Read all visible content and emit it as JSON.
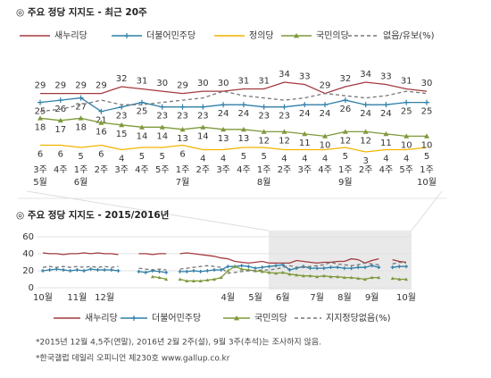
{
  "chart_data": [
    {
      "type": "line",
      "title": "◎  주요 정당 지지도 - 최근 20주",
      "categories": [
        "3주",
        "4주",
        "1주",
        "2주",
        "3주",
        "4주",
        "5주",
        "1주",
        "2주",
        "3주",
        "4주",
        "1주",
        "2주",
        "3주",
        "4주",
        "1주",
        "2주",
        "4주",
        "5주",
        "1주"
      ],
      "months": [
        "5월",
        null,
        "6월",
        null,
        null,
        null,
        null,
        "7월",
        null,
        null,
        null,
        "8월",
        null,
        null,
        null,
        "9월",
        null,
        null,
        null,
        "10월"
      ],
      "series": [
        {
          "name": "새누리당",
          "color": "#a33a3f",
          "marker": null,
          "dash": false,
          "labels": true,
          "label_pos": "above",
          "values": [
            29,
            29,
            29,
            29,
            32,
            31,
            30,
            29,
            30,
            30,
            31,
            31,
            34,
            33,
            29,
            32,
            34,
            33,
            31,
            30
          ]
        },
        {
          "name": "더불어민주당",
          "color": "#2f7fa8",
          "marker": "plus",
          "dash": false,
          "labels": true,
          "label_pos": "below",
          "values": [
            25,
            26,
            27,
            21,
            23,
            25,
            23,
            23,
            23,
            24,
            24,
            23,
            23,
            24,
            24,
            26,
            24,
            24,
            25,
            25
          ]
        },
        {
          "name": "정의당",
          "color": "#f2b400",
          "marker": null,
          "dash": false,
          "labels": true,
          "label_pos": "below",
          "values": [
            6,
            6,
            5,
            6,
            4,
            5,
            5,
            6,
            4,
            4,
            5,
            5,
            4,
            4,
            4,
            5,
            3,
            4,
            4,
            5
          ]
        },
        {
          "name": "국민의당",
          "color": "#7f9a3c",
          "marker": "triangle",
          "dash": false,
          "labels": true,
          "label_pos": "below",
          "values": [
            18,
            17,
            18,
            16,
            15,
            14,
            14,
            13,
            14,
            13,
            13,
            12,
            12,
            11,
            10,
            12,
            12,
            11,
            10,
            10
          ]
        },
        {
          "name": "없음/유보(%)",
          "color": "#777777",
          "marker": null,
          "dash": true,
          "labels": false,
          "label_pos": "above",
          "values": [
            21,
            22,
            24,
            26,
            24,
            24,
            25,
            26,
            27,
            30,
            28,
            27,
            26,
            27,
            29,
            28,
            27,
            28,
            30,
            29
          ]
        }
      ]
    },
    {
      "type": "line",
      "title": "◎  주요 정당 지지도 - 2015/2016년",
      "categories": [
        "10월",
        null,
        null,
        null,
        null,
        "11월",
        null,
        null,
        null,
        "12월",
        null,
        null,
        null,
        null,
        null,
        null,
        null,
        null,
        null,
        null,
        null,
        null,
        null,
        null,
        null,
        null,
        null,
        "4월",
        null,
        null,
        null,
        "5월",
        null,
        null,
        null,
        "6월",
        null,
        null,
        null,
        null,
        "7월",
        null,
        null,
        null,
        "8월",
        null,
        null,
        null,
        "9월",
        null,
        null,
        null,
        null,
        "10월"
      ],
      "ylim": [
        0,
        62
      ],
      "yticks": [
        0,
        20,
        40,
        60
      ],
      "grid": true,
      "series": [
        {
          "name": "새누리당",
          "color": "#a33a3f",
          "marker": null,
          "dash": false,
          "values": [
            41,
            40,
            40,
            39,
            40,
            40,
            41,
            40,
            41,
            40,
            40,
            39,
            null,
            null,
            40,
            40,
            39,
            40,
            40,
            null,
            40,
            41,
            40,
            39,
            38,
            37,
            35,
            34,
            31,
            30,
            29,
            30,
            31,
            29,
            29,
            29,
            29,
            32,
            31,
            30,
            29,
            30,
            30,
            31,
            31,
            34,
            33,
            29,
            32,
            34,
            null,
            33,
            31,
            30
          ]
        },
        {
          "name": "더불어민주당",
          "color": "#2f7fa8",
          "marker": "plus",
          "dash": false,
          "values": [
            20,
            21,
            22,
            21,
            20,
            21,
            20,
            22,
            21,
            21,
            21,
            20,
            null,
            null,
            19,
            18,
            20,
            19,
            18,
            null,
            19,
            19,
            20,
            19,
            20,
            21,
            21,
            25,
            25,
            26,
            25,
            23,
            24,
            25,
            26,
            27,
            21,
            23,
            25,
            23,
            23,
            23,
            24,
            24,
            23,
            23,
            24,
            24,
            26,
            24,
            null,
            24,
            25,
            25
          ]
        },
        {
          "name": "국민의당",
          "color": "#7f9a3c",
          "marker": "triangle",
          "dash": false,
          "values": [
            null,
            null,
            null,
            null,
            null,
            null,
            null,
            null,
            null,
            null,
            null,
            null,
            null,
            null,
            null,
            null,
            13,
            12,
            10,
            null,
            10,
            8,
            8,
            8,
            9,
            10,
            12,
            20,
            25,
            22,
            21,
            20,
            19,
            18,
            17,
            18,
            16,
            15,
            14,
            14,
            13,
            14,
            13,
            13,
            12,
            12,
            11,
            10,
            12,
            12,
            null,
            11,
            10,
            10
          ]
        },
        {
          "name": "지지정당없음(%)",
          "color": "#777777",
          "marker": null,
          "dash": true,
          "values": [
            24,
            25,
            24,
            25,
            24,
            25,
            24,
            25,
            24,
            25,
            24,
            25,
            null,
            null,
            23,
            22,
            21,
            22,
            21,
            null,
            22,
            23,
            24,
            25,
            26,
            25,
            24,
            17,
            18,
            19,
            20,
            20,
            21,
            21,
            22,
            24,
            26,
            24,
            24,
            25,
            26,
            27,
            30,
            28,
            27,
            26,
            27,
            29,
            28,
            27,
            null,
            28,
            30,
            29
          ]
        }
      ]
    }
  ],
  "footnotes": [
    "*2015년 12월 4,5주(연말), 2016년 2월 2주(설), 9월 3주(추석)는 조사하지 않음.",
    "*한국갤럽 데일리 오피니언 제230호 www.gallup.co.kr"
  ]
}
